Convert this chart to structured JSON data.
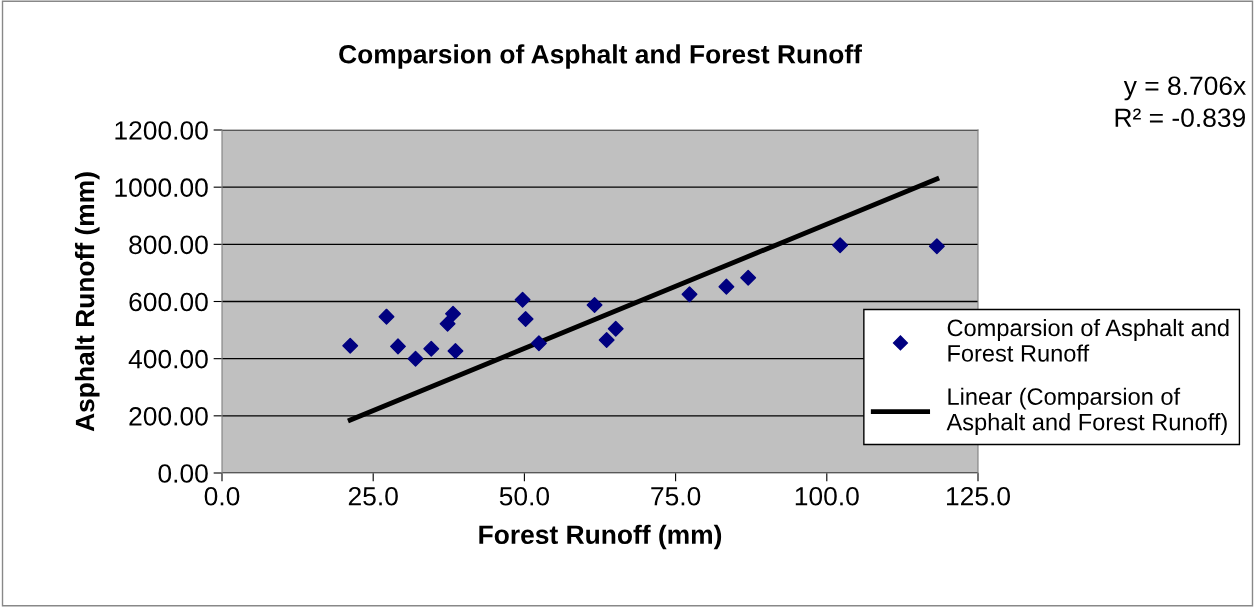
{
  "chart_data": {
    "type": "scatter",
    "title": "Comparsion of Asphalt and Forest Runoff",
    "xlabel": "Forest Runoff (mm)",
    "ylabel": "Asphalt Runoff (mm)",
    "annotations": [
      "y = 8.706x",
      "R² = -0.839"
    ],
    "series": [
      {
        "name": "Comparsion of Asphalt and Forest Runoff",
        "color": "#000080",
        "marker": "diamond",
        "x": [
          21.2,
          27.2,
          29.1,
          32.0,
          34.6,
          37.3,
          38.2,
          38.6,
          49.7,
          50.2,
          52.4,
          61.6,
          63.6,
          65.1,
          77.3,
          83.4,
          87.0,
          102.2,
          118.2
        ],
        "values": [
          445,
          547,
          443,
          400,
          435,
          522,
          557,
          427,
          606,
          539,
          454,
          588,
          465,
          505,
          625,
          652,
          683,
          797,
          793
        ]
      },
      {
        "name": "Linear (Comparsion of Asphalt and Forest Runoff)",
        "type": "line",
        "color": "#000000",
        "line_style": "solid",
        "marker": "none",
        "x": [
          21.2,
          118.2
        ],
        "values": [
          185,
          1029
        ]
      }
    ],
    "xlim": [
      0,
      125
    ],
    "ylim": [
      0,
      1200
    ],
    "xticks": [
      {
        "value": 0,
        "label": "0.0"
      },
      {
        "value": 25,
        "label": "25.0"
      },
      {
        "value": 50,
        "label": "50.0"
      },
      {
        "value": 75,
        "label": "75.0"
      },
      {
        "value": 100,
        "label": "100.0"
      },
      {
        "value": 125,
        "label": "125.0"
      }
    ],
    "yticks": [
      {
        "value": 0,
        "label": "0.00"
      },
      {
        "value": 200,
        "label": "200.00"
      },
      {
        "value": 400,
        "label": "400.00"
      },
      {
        "value": 600,
        "label": "600.00"
      },
      {
        "value": 800,
        "label": "800.00"
      },
      {
        "value": 1000,
        "label": "1000.00"
      },
      {
        "value": 1200,
        "label": "1200.00"
      }
    ],
    "grid": "y",
    "legend": "right"
  }
}
